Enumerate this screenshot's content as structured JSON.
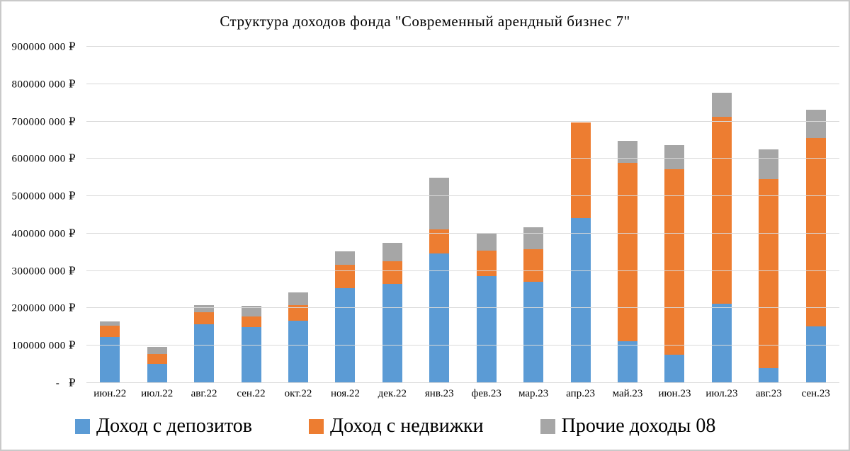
{
  "frame": {
    "border_color": "#c9c9c9",
    "background": "#ffffff"
  },
  "chart_data": {
    "type": "bar",
    "stacked": true,
    "title": "Структура  доходов фонда \"Современный арендный бизнес 7\"",
    "value_unit": "million ₽",
    "axis_max_rub": 900000000,
    "categories": [
      "июн.22",
      "июл.22",
      "авг.22",
      "сен.22",
      "окт.22",
      "ноя.22",
      "дек.22",
      "янв.23",
      "фев.23",
      "мар.23",
      "апр.23",
      "май.23",
      "июн.23",
      "июл.23",
      "авг.23",
      "сен.23"
    ],
    "series": [
      {
        "name": "Доход с депозитов",
        "color": "#5b9bd5",
        "values": [
          124,
          52,
          157,
          150,
          167,
          254,
          265,
          347,
          287,
          271,
          442,
          111,
          75,
          212,
          40,
          152
        ]
      },
      {
        "name": "Доход с недвижки",
        "color": "#ed7d31",
        "values": [
          29,
          26,
          32,
          29,
          42,
          62,
          61,
          65,
          67,
          88,
          255,
          478,
          498,
          500,
          506,
          503
        ]
      },
      {
        "name": "Прочие доходы 08",
        "color": "#a6a6a6",
        "values": [
          12,
          18,
          19,
          27,
          33,
          37,
          49,
          137,
          46,
          57,
          0,
          60,
          63,
          65,
          79,
          76
        ]
      }
    ],
    "totals": [
      165,
      96,
      208,
      206,
      242,
      353,
      375,
      549,
      400,
      416,
      697,
      649,
      636,
      777,
      625,
      731
    ],
    "ylim": [
      0,
      900
    ],
    "y_tick_step": 100,
    "y_tick_labels": [
      "-   ₽",
      "100000 000 ₽",
      "200000 000 ₽",
      "300000 000 ₽",
      "400000 000 ₽",
      "500000 000 ₽",
      "600000 000 ₽",
      "700000 000 ₽",
      "800000 000 ₽",
      "900000 000 ₽"
    ],
    "grid": true,
    "gridline_color": "#d9d9d9",
    "legend_position": "bottom"
  }
}
